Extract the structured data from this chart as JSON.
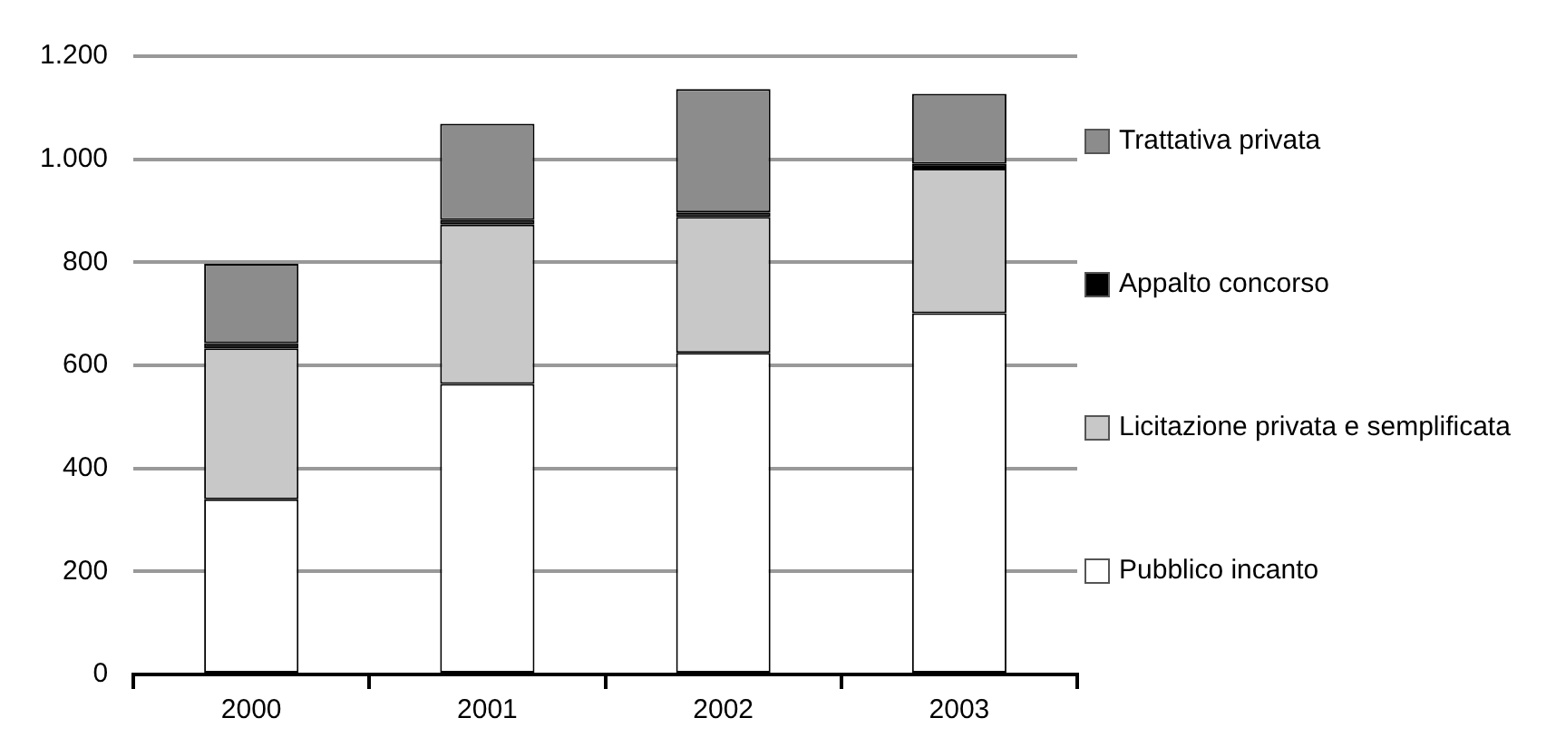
{
  "chart_data": {
    "type": "bar",
    "stacked": true,
    "categories": [
      "2000",
      "2001",
      "2002",
      "2003"
    ],
    "series": [
      {
        "name": "Pubblico incanto",
        "color": "#ffffff",
        "values": [
          340,
          564,
          624,
          701
        ]
      },
      {
        "name": "Licitazione privata e semplificata",
        "color": "#c8c8c8",
        "values": [
          293,
          309,
          264,
          281
        ]
      },
      {
        "name": "Appalto concorso",
        "color": "#000000",
        "values": [
          10,
          9,
          9,
          9
        ]
      },
      {
        "name": "Trattativa privata",
        "color": "#8c8c8c",
        "values": [
          154,
          187,
          239,
          136
        ]
      }
    ],
    "ylim": [
      0,
      1200
    ],
    "yticks": [
      0,
      200,
      400,
      600,
      800,
      {
        "value": 1000,
        "label": "1.000"
      },
      {
        "value": 1200,
        "label": "1.200"
      }
    ],
    "grid": "y",
    "legend": "right"
  }
}
